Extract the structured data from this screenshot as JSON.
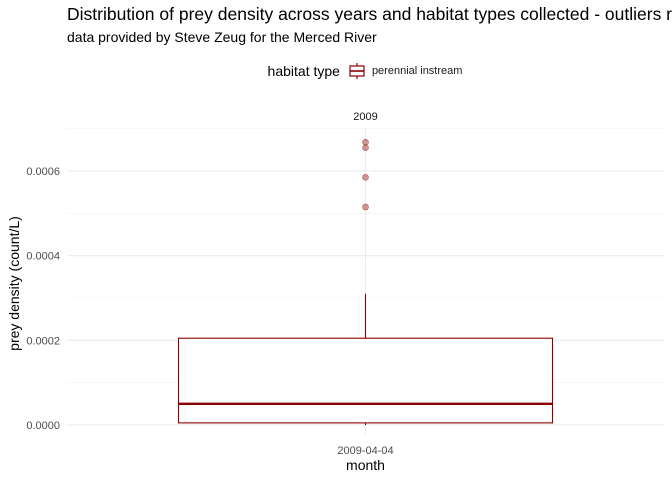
{
  "chart_data": {
    "type": "box",
    "title": "Distribution of prey density across years and habitat types collected - outliers r",
    "subtitle": "data provided by Steve Zeug for the Merced River",
    "xlabel": "month",
    "ylabel": "prey density (count/L)",
    "facet": "2009",
    "categories": [
      "2009-04-04"
    ],
    "legend": {
      "title": "habitat type",
      "entries": [
        "perennial instream"
      ],
      "placement": "top"
    },
    "ylim": [
      0,
      0.00071
    ],
    "yticks": [
      0.0,
      0.0002,
      0.0004,
      0.0006
    ],
    "ytick_labels": [
      "0.0000",
      "0.0002",
      "0.0004",
      "0.0006"
    ],
    "grid": true,
    "series": [
      {
        "name": "perennial instream",
        "color": "#8B0000",
        "boxes": [
          {
            "category": "2009-04-04",
            "lower_whisker": 0.0,
            "q1": 5e-06,
            "median": 5e-05,
            "q3": 0.000205,
            "upper_whisker": 0.00031
          }
        ],
        "outliers": [
          {
            "category": "2009-04-04",
            "value": 0.000515
          },
          {
            "category": "2009-04-04",
            "value": 0.000585
          },
          {
            "category": "2009-04-04",
            "value": 0.000655
          },
          {
            "category": "2009-04-04",
            "value": 0.000668
          }
        ]
      }
    ]
  }
}
